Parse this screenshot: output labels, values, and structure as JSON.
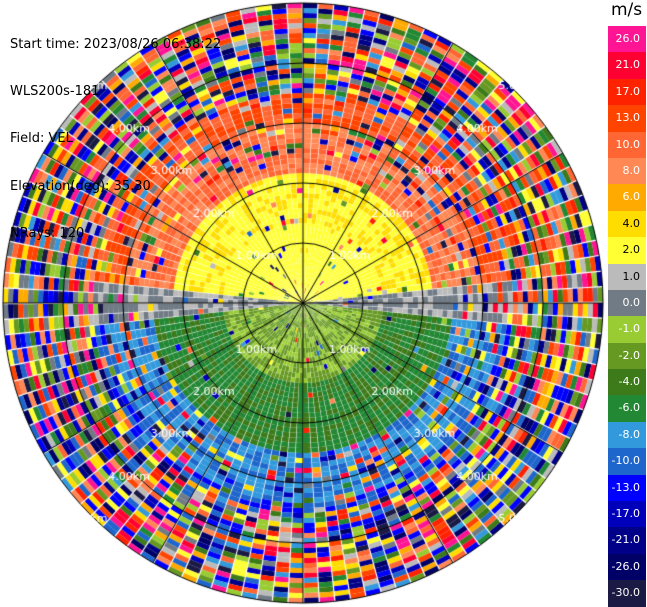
{
  "header": {
    "start_time": "Start time: 2023/08/26 06:38:22",
    "instrument": "WLS200s-181",
    "field": "Field: VEL",
    "elevation": "Elevation(deg): 35.30",
    "nrays": "NRays: 120"
  },
  "colorbar": {
    "unit": "m/s",
    "levels": [
      {
        "label": "26.0",
        "color": "#ff1493"
      },
      {
        "label": "21.0",
        "color": "#ff0033"
      },
      {
        "label": "17.0",
        "color": "#ff2200"
      },
      {
        "label": "13.0",
        "color": "#ff4400"
      },
      {
        "label": "10.0",
        "color": "#ff6633"
      },
      {
        "label": "8.0",
        "color": "#ff8855"
      },
      {
        "label": "6.0",
        "color": "#ffaa00"
      },
      {
        "label": "4.0",
        "color": "#ffdd00"
      },
      {
        "label": "2.0",
        "color": "#ffff33"
      },
      {
        "label": "1.0",
        "color": "#bbbbbb"
      },
      {
        "label": "0.0",
        "color": "#707b86"
      },
      {
        "label": "-1.0",
        "color": "#99cc33"
      },
      {
        "label": "-2.0",
        "color": "#669922"
      },
      {
        "label": "-4.0",
        "color": "#3d7a1a"
      },
      {
        "label": "-6.0",
        "color": "#228833"
      },
      {
        "label": "-8.0",
        "color": "#3399dd"
      },
      {
        "label": "-10.0",
        "color": "#1e66cc"
      },
      {
        "label": "-13.0",
        "color": "#0000ff"
      },
      {
        "label": "-17.0",
        "color": "#0000bb"
      },
      {
        "label": "-21.0",
        "color": "#000088"
      },
      {
        "label": "-26.0",
        "color": "#000066"
      },
      {
        "label": "-30.0",
        "color": "#1a1a44"
      }
    ]
  },
  "range_rings": {
    "labels": [
      "1.00km",
      "2.00km",
      "3.00km",
      "4.00km",
      "5.00km"
    ]
  }
}
